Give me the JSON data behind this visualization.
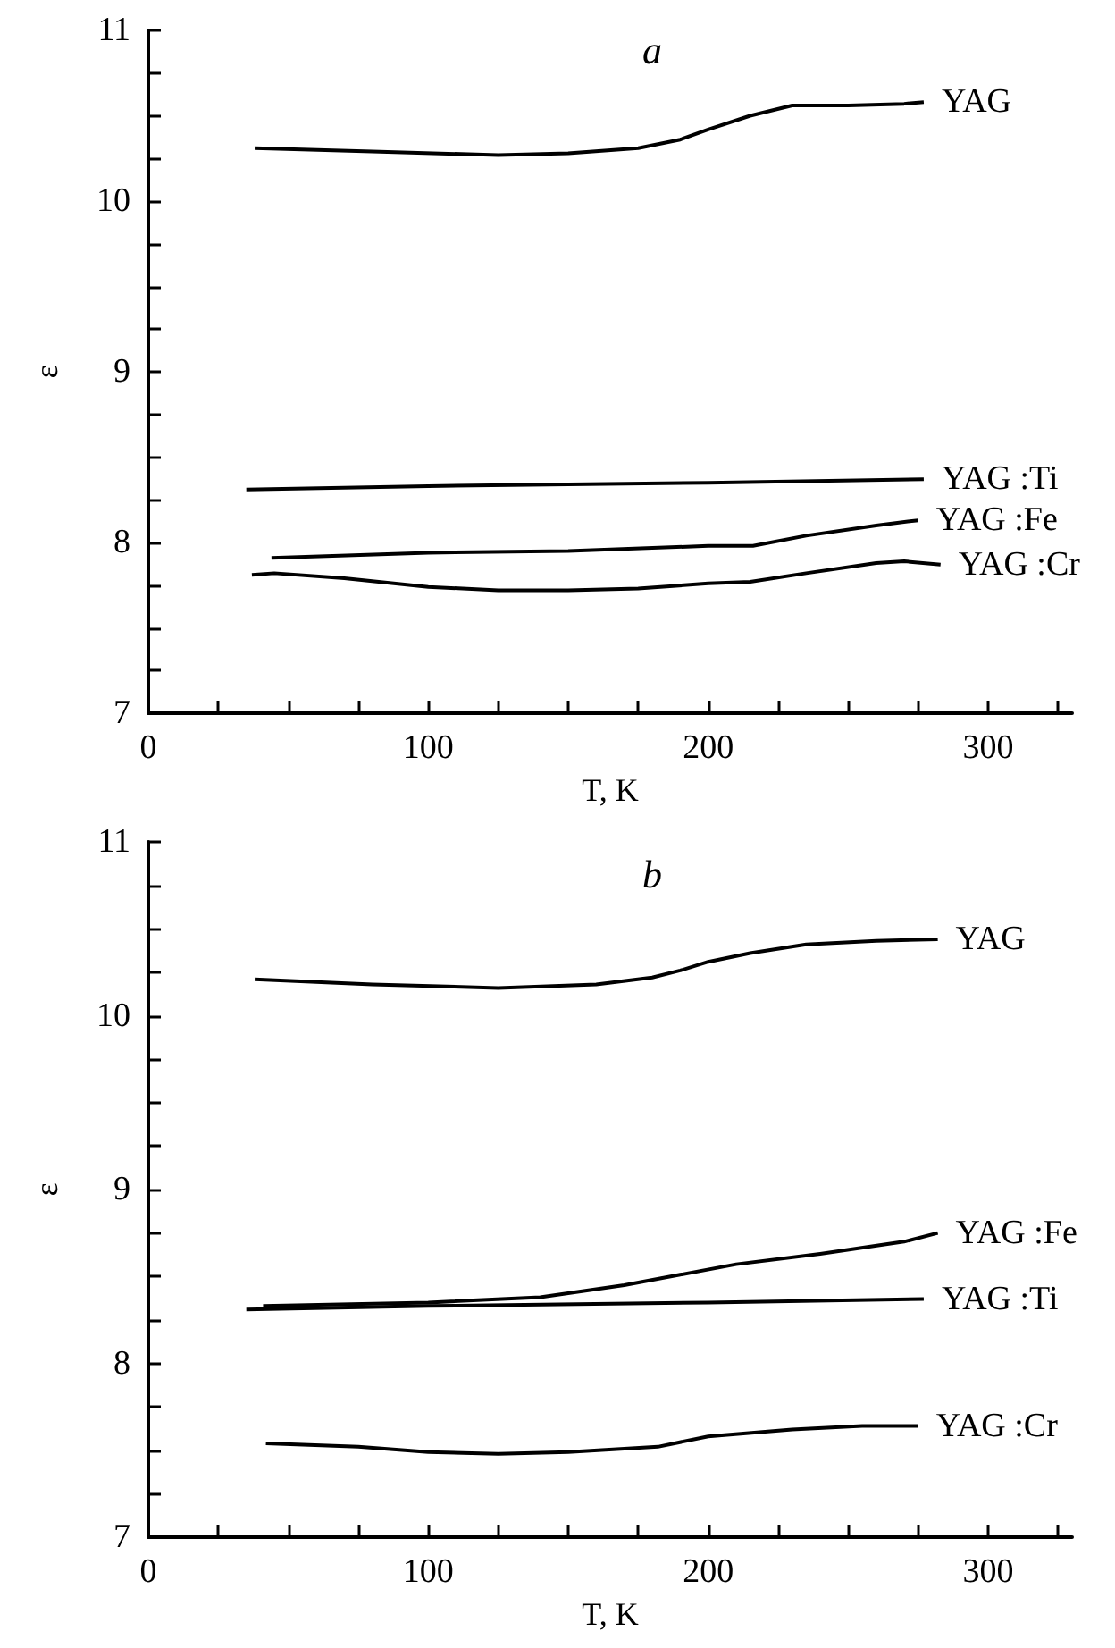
{
  "chart_data": [
    {
      "type": "line",
      "title": "a",
      "xlabel": "T, K",
      "ylabel": "ε",
      "xlim": [
        0,
        330
      ],
      "ylim": [
        7,
        11
      ],
      "xticks": [
        0,
        {
          "value": 25,
          "label": null
        },
        {
          "value": 50,
          "label": null
        },
        {
          "value": 75,
          "label": null
        },
        100,
        {
          "value": 125,
          "label": null
        },
        {
          "value": 150,
          "label": null
        },
        {
          "value": 175,
          "label": null
        },
        200,
        {
          "value": 225,
          "label": null
        },
        {
          "value": 250,
          "label": null
        },
        {
          "value": 275,
          "label": null
        },
        300,
        {
          "value": 325,
          "label": null
        }
      ],
      "yticks": [
        7,
        {
          "value": 7.25,
          "label": null
        },
        {
          "value": 7.5,
          "label": null
        },
        {
          "value": 7.75,
          "label": null
        },
        8,
        {
          "value": 8.25,
          "label": null
        },
        {
          "value": 8.5,
          "label": null
        },
        {
          "value": 8.75,
          "label": null
        },
        9,
        {
          "value": 9.25,
          "label": null
        },
        {
          "value": 9.5,
          "label": null
        },
        {
          "value": 9.75,
          "label": null
        },
        10,
        {
          "value": 10.25,
          "label": null
        },
        {
          "value": 10.5,
          "label": null
        },
        {
          "value": 10.75,
          "label": null
        },
        11
      ],
      "grid": false,
      "legend": false,
      "marker": "none",
      "line_style": "solid",
      "series": [
        {
          "name": "YAG",
          "color": "#000000",
          "x": [
            38,
            80,
            125,
            150,
            175,
            190,
            200,
            215,
            230,
            250,
            270,
            277
          ],
          "values": [
            10.31,
            10.29,
            10.27,
            10.28,
            10.31,
            10.36,
            10.42,
            10.5,
            10.56,
            10.56,
            10.57,
            10.58
          ]
        },
        {
          "name": "YAG :Ti",
          "color": "#000000",
          "x": [
            35,
            100,
            200,
            277
          ],
          "values": [
            8.31,
            8.33,
            8.35,
            8.37
          ]
        },
        {
          "name": "YAG :Fe",
          "color": "#000000",
          "x": [
            44,
            100,
            150,
            200,
            216,
            235,
            260,
            275
          ],
          "values": [
            7.91,
            7.94,
            7.95,
            7.98,
            7.98,
            8.04,
            8.1,
            8.13
          ]
        },
        {
          "name": "YAG :Cr",
          "color": "#000000",
          "x": [
            37,
            45,
            70,
            100,
            125,
            150,
            175,
            200,
            215,
            235,
            260,
            270,
            283
          ],
          "values": [
            7.81,
            7.82,
            7.79,
            7.74,
            7.72,
            7.72,
            7.73,
            7.76,
            7.77,
            7.82,
            7.88,
            7.89,
            7.87
          ]
        }
      ]
    },
    {
      "type": "line",
      "title": "b",
      "xlabel": "T, K",
      "ylabel": "ε",
      "xlim": [
        0,
        330
      ],
      "ylim": [
        7,
        11
      ],
      "xticks": [
        0,
        {
          "value": 25,
          "label": null
        },
        {
          "value": 50,
          "label": null
        },
        {
          "value": 75,
          "label": null
        },
        100,
        {
          "value": 125,
          "label": null
        },
        {
          "value": 150,
          "label": null
        },
        {
          "value": 175,
          "label": null
        },
        200,
        {
          "value": 225,
          "label": null
        },
        {
          "value": 250,
          "label": null
        },
        {
          "value": 275,
          "label": null
        },
        300,
        {
          "value": 325,
          "label": null
        }
      ],
      "yticks": [
        7,
        {
          "value": 7.25,
          "label": null
        },
        {
          "value": 7.5,
          "label": null
        },
        {
          "value": 7.75,
          "label": null
        },
        8,
        {
          "value": 8.25,
          "label": null
        },
        {
          "value": 8.5,
          "label": null
        },
        {
          "value": 8.75,
          "label": null
        },
        9,
        {
          "value": 9.25,
          "label": null
        },
        {
          "value": 9.5,
          "label": null
        },
        {
          "value": 9.75,
          "label": null
        },
        10,
        {
          "value": 10.25,
          "label": null
        },
        {
          "value": 10.5,
          "label": null
        },
        {
          "value": 10.75,
          "label": null
        },
        11
      ],
      "grid": false,
      "legend": false,
      "marker": "none",
      "line_style": "solid",
      "series": [
        {
          "name": "YAG",
          "color": "#000000",
          "x": [
            38,
            80,
            125,
            160,
            180,
            190,
            200,
            215,
            235,
            260,
            282
          ],
          "values": [
            10.21,
            10.18,
            10.16,
            10.18,
            10.22,
            10.26,
            10.31,
            10.36,
            10.41,
            10.43,
            10.44
          ]
        },
        {
          "name": "YAG :Fe",
          "color": "#000000",
          "x": [
            41,
            100,
            140,
            170,
            190,
            210,
            240,
            270,
            282
          ],
          "values": [
            8.33,
            8.35,
            8.38,
            8.45,
            8.51,
            8.57,
            8.63,
            8.7,
            8.75
          ]
        },
        {
          "name": "YAG :Ti",
          "color": "#000000",
          "x": [
            35,
            100,
            200,
            277
          ],
          "values": [
            8.31,
            8.33,
            8.35,
            8.37
          ]
        },
        {
          "name": "YAG :Cr",
          "color": "#000000",
          "x": [
            42,
            75,
            100,
            125,
            150,
            182,
            200,
            230,
            255,
            275
          ],
          "values": [
            7.54,
            7.52,
            7.49,
            7.48,
            7.49,
            7.52,
            7.58,
            7.62,
            7.64,
            7.64
          ]
        }
      ]
    }
  ]
}
